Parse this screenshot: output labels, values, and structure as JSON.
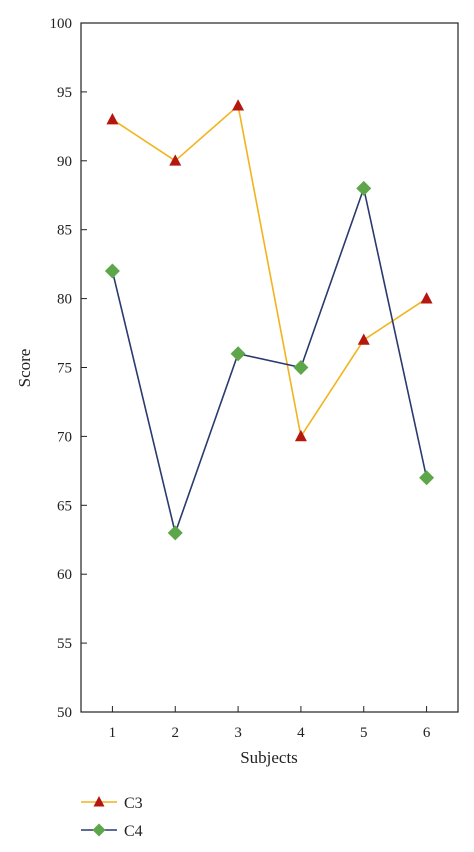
{
  "chart_data": {
    "type": "line",
    "xlabel": "Subjects",
    "ylabel": "Score",
    "x": [
      1,
      2,
      3,
      4,
      5,
      6
    ],
    "xticks": [
      "1",
      "2",
      "3",
      "4",
      "5",
      "6"
    ],
    "xlim": [
      0.5,
      6.5
    ],
    "ylim": [
      50,
      100
    ],
    "yticks": [
      50,
      55,
      60,
      65,
      70,
      75,
      80,
      85,
      90,
      95,
      100
    ],
    "grid": false,
    "legend_position": "bottom-left",
    "series": [
      {
        "name": "C3",
        "values": [
          93,
          90,
          94,
          70,
          77,
          80
        ],
        "line_color": "#f2b31e",
        "marker": "triangle",
        "marker_color": "#b5170f"
      },
      {
        "name": "C4",
        "values": [
          82,
          63,
          76,
          75,
          88,
          67
        ],
        "line_color": "#2b3a6e",
        "marker": "diamond",
        "marker_color": "#5ea64a"
      }
    ]
  }
}
